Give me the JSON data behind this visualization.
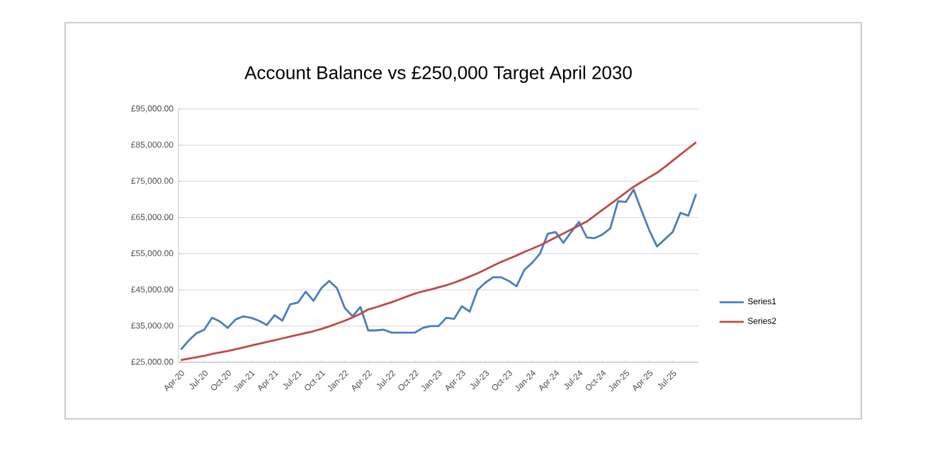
{
  "chart_data": {
    "type": "line",
    "title": "Account Balance vs £250,000 Target April 2030",
    "categories": [
      "Apr-20",
      null,
      null,
      "Jul-20",
      null,
      null,
      "Oct-20",
      null,
      null,
      "Jan-21",
      null,
      null,
      "Apr-21",
      null,
      null,
      "Jul-21",
      null,
      null,
      "Oct-21",
      null,
      null,
      "Jan-22",
      null,
      null,
      "Apr-22",
      null,
      null,
      "Jul-22",
      null,
      null,
      "Oct-22",
      null,
      null,
      "Jan-23",
      null,
      null,
      "Apr-23",
      null,
      null,
      "Jul-23",
      null,
      null,
      "Oct-23",
      null,
      null,
      "Jan-24",
      null,
      null,
      "Apr-24",
      null,
      null,
      "Jul-24",
      null,
      null,
      "Oct-24",
      null,
      null,
      "Jan-25",
      null,
      null,
      "Apr-25",
      null,
      null,
      "Jul-25",
      null,
      null,
      null
    ],
    "series": [
      {
        "name": "Series1",
        "color": "#4a7ebb",
        "values": [
          28500,
          31000,
          33000,
          34000,
          37300,
          36300,
          34500,
          36800,
          37700,
          37300,
          36500,
          35300,
          38000,
          36500,
          41000,
          41500,
          44500,
          42000,
          45500,
          47500,
          45500,
          40000,
          37700,
          40300,
          33800,
          33800,
          34000,
          33200,
          33200,
          33200,
          33200,
          34500,
          35000,
          35000,
          37300,
          37000,
          40500,
          39000,
          45000,
          47000,
          48500,
          48500,
          47500,
          46000,
          50500,
          52500,
          55000,
          60500,
          61000,
          58000,
          61000,
          63800,
          59500,
          59300,
          60300,
          62000,
          69500,
          69300,
          72700,
          67000,
          61500,
          57000,
          59000,
          61000,
          66300,
          65500,
          71500
        ]
      },
      {
        "name": "Series2",
        "color": "#be4b48",
        "values": [
          25600,
          26000,
          26400,
          26800,
          27300,
          27700,
          28100,
          28600,
          29100,
          29600,
          30100,
          30600,
          31100,
          31600,
          32100,
          32600,
          33100,
          33600,
          34200,
          34900,
          35700,
          36500,
          37400,
          38400,
          39600,
          40200,
          40900,
          41600,
          42400,
          43200,
          44000,
          44600,
          45100,
          45700,
          46300,
          47000,
          47800,
          48700,
          49600,
          50600,
          51700,
          52700,
          53600,
          54500,
          55500,
          56400,
          57300,
          58400,
          59500,
          60600,
          61700,
          62800,
          63900,
          65500,
          67100,
          68700,
          70300,
          71900,
          73500,
          74800,
          76100,
          77400,
          79000,
          80700,
          82400,
          84100,
          85800
        ]
      }
    ],
    "ylim": [
      25000,
      95000
    ],
    "yticks": [
      {
        "value": 25000,
        "label": "£25,000.00"
      },
      {
        "value": 35000,
        "label": "£35,000.00"
      },
      {
        "value": 45000,
        "label": "£45,000.00"
      },
      {
        "value": 55000,
        "label": "£55,000.00"
      },
      {
        "value": 65000,
        "label": "£65,000.00"
      },
      {
        "value": 75000,
        "label": "£75,000.00"
      },
      {
        "value": 85000,
        "label": "£85,000.00"
      },
      {
        "value": 95000,
        "label": "£95,000.00"
      }
    ],
    "grid": "y",
    "legend": "right",
    "marker": "none",
    "line_style": "solid"
  }
}
